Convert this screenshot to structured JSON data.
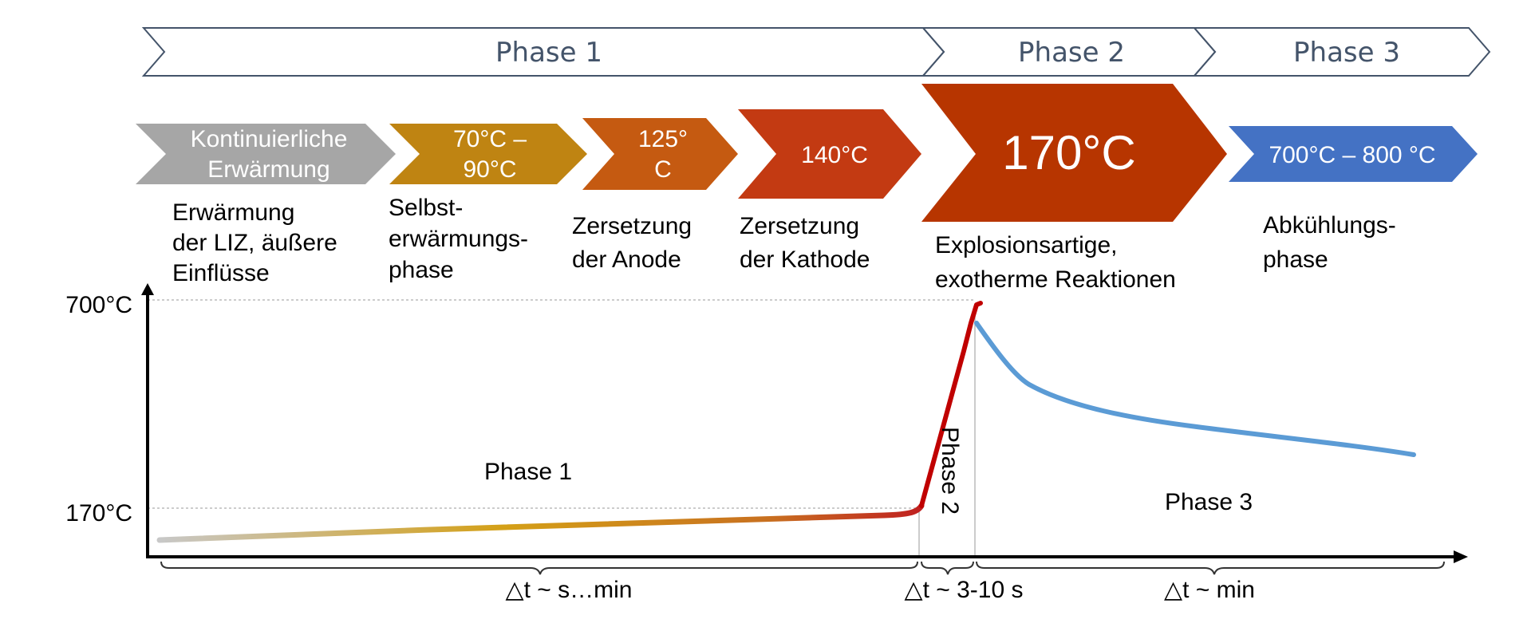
{
  "phase_bar": {
    "items": [
      {
        "label": "Phase 1"
      },
      {
        "label": "Phase 2"
      },
      {
        "label": "Phase 3"
      }
    ],
    "stroke": "#44546A"
  },
  "stages": [
    {
      "lines": [
        "Kontinuierliche",
        "Erwärmung"
      ],
      "color": "#A6A6A6",
      "description": [
        "Erwärmung",
        "der LIZ, äußere",
        "Einflüsse"
      ]
    },
    {
      "lines": [
        "70°C –",
        "90°C"
      ],
      "color": "#BF8412",
      "description": [
        "Selbst-",
        "erwärmungs-",
        "phase"
      ]
    },
    {
      "lines": [
        "125°",
        "C"
      ],
      "color": "#C55A11",
      "description": [
        "Zersetzung",
        "der Anode"
      ]
    },
    {
      "lines": [
        "140°C"
      ],
      "color": "#C33A12",
      "description": [
        "Zersetzung",
        "der Kathode"
      ]
    },
    {
      "lines": [
        "170°C"
      ],
      "color": "#B73500",
      "description": [
        "Explosionsartige,",
        "exotherme Reaktionen"
      ]
    },
    {
      "lines": [
        "700°C – 800 °C"
      ],
      "color": "#4472C4",
      "description": [
        "Abkühlungs-",
        "phase"
      ]
    }
  ],
  "graph": {
    "y_ticks": [
      "700°C",
      "170°C"
    ],
    "curve_labels": {
      "phase1": "Phase 1",
      "phase2": "Phase 2",
      "phase3": "Phase 3"
    },
    "durations": [
      "△t ~ s…min",
      "△t ~ 3-10 s",
      "△t ~ min"
    ],
    "colors": {
      "heating_start": "#C8C8C8",
      "heating_mid": "#D4A017",
      "heating_end": "#C02020",
      "runaway": "#C00000",
      "cooling": "#5B9BD5"
    }
  }
}
